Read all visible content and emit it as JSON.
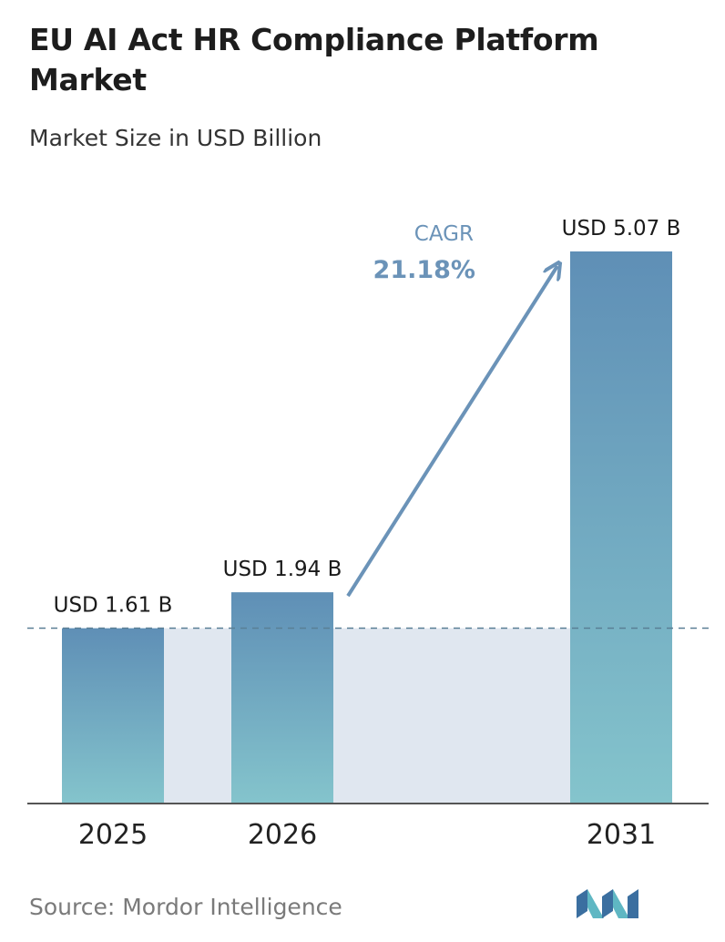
{
  "title": "EU AI Act HR Compliance Platform Market",
  "subtitle": "Market Size in USD Billion",
  "source": "Source:  Mordor Intelligence",
  "logo_icon": "mordor-intelligence-logo-icon",
  "colors": {
    "bar_top": "#5f8fb6",
    "bar_bottom": "#84c4cc",
    "band": "#e0e7f0",
    "cagr": "#6b93b8",
    "axis": "#555555",
    "reference_line": "#5a7f95"
  },
  "chart_data": {
    "type": "bar",
    "categories": [
      "2025",
      "2026",
      "2031"
    ],
    "values": [
      1.61,
      1.94,
      5.07
    ],
    "value_labels": [
      "USD 1.61 B",
      "USD 1.94 B",
      "USD 5.07 B"
    ],
    "title": "EU AI Act HR Compliance Platform Market",
    "subtitle": "Market Size in USD Billion",
    "xlabel": "",
    "ylabel": "",
    "ylim": [
      0,
      5.07
    ],
    "grid": false,
    "legend": "none",
    "reference_line": {
      "value": 1.61,
      "style": "dashed"
    },
    "annotation": {
      "label": "CAGR",
      "value": "21.18%",
      "from": "2026",
      "to": "2031"
    }
  }
}
